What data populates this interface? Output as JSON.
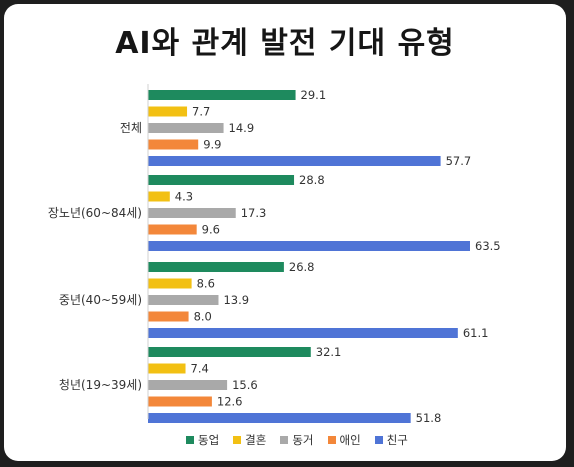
{
  "chart_data": {
    "type": "bar",
    "orientation": "horizontal",
    "title": "AI와 관계 발전 기대 유형",
    "categories": [
      "전체",
      "장노년(60~84세)",
      "중년(40~59세)",
      "청년(19~39세)"
    ],
    "series": [
      {
        "name": "동업",
        "color": "#1e8a5e",
        "values": [
          29.1,
          28.8,
          26.8,
          32.1
        ]
      },
      {
        "name": "결혼",
        "color": "#f2c013",
        "values": [
          7.7,
          4.3,
          8.6,
          7.4
        ]
      },
      {
        "name": "동거",
        "color": "#a9a9a9",
        "values": [
          14.9,
          17.3,
          13.9,
          15.6
        ]
      },
      {
        "name": "애인",
        "color": "#f3873a",
        "values": [
          9.9,
          9.6,
          8.0,
          12.6
        ]
      },
      {
        "name": "친구",
        "color": "#4f74d6",
        "values": [
          57.7,
          63.5,
          61.1,
          51.8
        ]
      }
    ],
    "xlim": [
      0,
      70
    ],
    "grid": false,
    "legend_position": "bottom"
  }
}
